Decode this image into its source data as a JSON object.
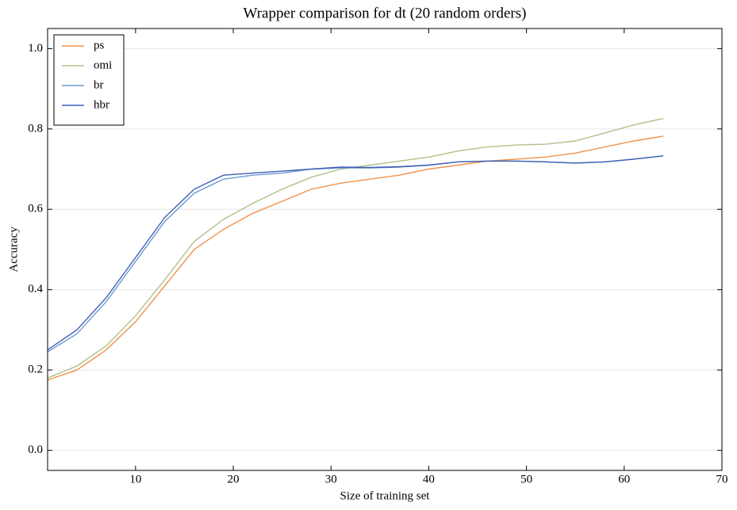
{
  "chart_data": {
    "type": "line",
    "title": "Wrapper comparison for dt (20 random orders)",
    "x_label": "Size of training set",
    "y_label": "Accuracy",
    "x": [
      1,
      4,
      7,
      10,
      13,
      16,
      19,
      22,
      25,
      28,
      31,
      34,
      37,
      40,
      43,
      46,
      49,
      52,
      55,
      58,
      61,
      64
    ],
    "series": [
      {
        "name": "ps",
        "color": "#f0924a",
        "values": [
          0.175,
          0.2,
          0.25,
          0.32,
          0.41,
          0.5,
          0.55,
          0.59,
          0.62,
          0.65,
          0.665,
          0.675,
          0.685,
          0.7,
          0.71,
          0.72,
          0.725,
          0.73,
          0.74,
          0.755,
          0.77,
          0.782
        ]
      },
      {
        "name": "omi",
        "color": "#b2c08a",
        "values": [
          0.18,
          0.21,
          0.26,
          0.335,
          0.425,
          0.52,
          0.575,
          0.615,
          0.65,
          0.68,
          0.7,
          0.71,
          0.72,
          0.73,
          0.745,
          0.755,
          0.76,
          0.762,
          0.77,
          0.79,
          0.81,
          0.826
        ]
      },
      {
        "name": "br",
        "color": "#6f9bd0",
        "values": [
          0.245,
          0.29,
          0.37,
          0.47,
          0.57,
          0.64,
          0.675,
          0.685,
          0.69,
          0.7,
          0.703,
          0.703,
          0.705,
          0.71,
          0.718,
          0.72,
          0.72,
          0.718,
          0.715,
          0.718,
          0.725,
          0.733
        ]
      },
      {
        "name": "hbr",
        "color": "#3f5fb8",
        "values": [
          0.25,
          0.3,
          0.38,
          0.48,
          0.58,
          0.65,
          0.685,
          0.69,
          0.695,
          0.7,
          0.705,
          0.704,
          0.706,
          0.71,
          0.718,
          0.72,
          0.72,
          0.718,
          0.715,
          0.718,
          0.725,
          0.733
        ]
      }
    ],
    "xlim": [
      1,
      70
    ],
    "ylim": [
      -0.05,
      1.05
    ],
    "xticks": [
      10,
      20,
      30,
      40,
      50,
      60,
      70
    ],
    "yticks": [
      {
        "value": 0,
        "label": "0.0"
      },
      0.2,
      0.4,
      0.6,
      0.8,
      {
        "value": 1,
        "label": "1.0"
      }
    ],
    "grid": true,
    "legend": "upper-left"
  }
}
